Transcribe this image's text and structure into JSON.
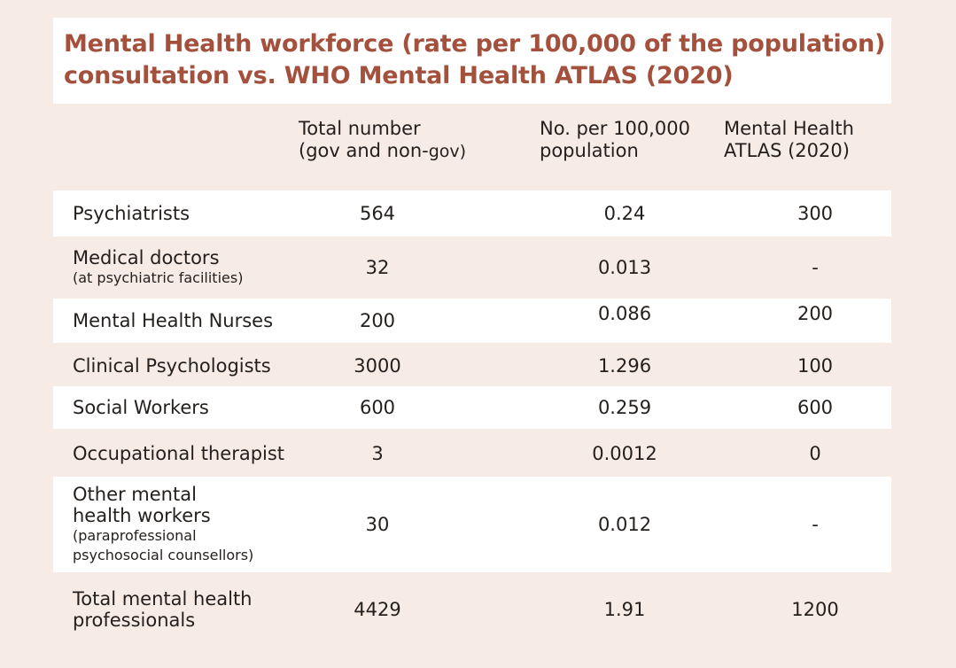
{
  "title_line1": "Mental Health workforce (rate per 100,000 of the population)",
  "title_line2": "consultation vs. WHO Mental Health ATLAS (2020)",
  "headers": {
    "col1_line1": "Total number",
    "col1_line2a": "(gov and non-",
    "col1_line2b": "gov)",
    "col2_line1": "No. per 100,000",
    "col2_line2": "population",
    "col3_line1": "Mental Health",
    "col3_line2": "ATLAS (2020)"
  },
  "rows": [
    {
      "label": "Psychiatrists",
      "sub": "",
      "total": "564",
      "per100k": "0.24",
      "atlas": "300"
    },
    {
      "label": "Medical doctors",
      "sub": "(at psychiatric facilities)",
      "total": "32",
      "per100k": "0.013",
      "atlas": "-"
    },
    {
      "label": "Mental Health Nurses",
      "sub": "",
      "total": "200",
      "per100k": "0.086",
      "atlas": "200"
    },
    {
      "label": "Clinical Psychologists",
      "sub": "",
      "total": "3000",
      "per100k": "1.296",
      "atlas": "100"
    },
    {
      "label": "Social Workers",
      "sub": "",
      "total": "600",
      "per100k": "0.259",
      "atlas": "600"
    },
    {
      "label": "Occupational therapist",
      "sub": "",
      "total": "3",
      "per100k": "0.0012",
      "atlas": "0"
    },
    {
      "label_line1": "Other mental",
      "label_line2": "health workers",
      "sub_line1": "(paraprofessional",
      "sub_line2": "psychosocial counsellors)",
      "total": "30",
      "per100k": "0.012",
      "atlas": "-"
    },
    {
      "label_line1": "Total mental health",
      "label_line2": "professionals",
      "total": "4429",
      "per100k": "1.91",
      "atlas": "1200"
    }
  ]
}
